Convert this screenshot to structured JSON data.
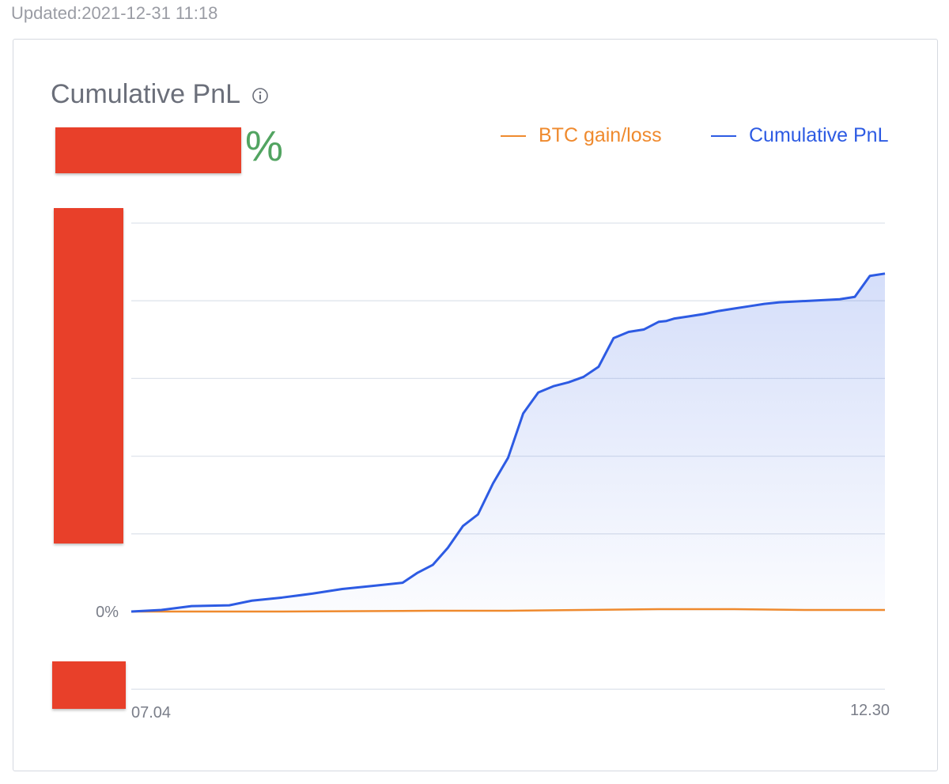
{
  "updated": "Updated:2021-12-31 11:18",
  "card": {
    "title": "Cumulative PnL",
    "value_suffix": "%"
  },
  "legend": {
    "btc": "BTC gain/loss",
    "pnl": "Cumulative PnL"
  },
  "colors": {
    "pnl": "#2d5be3",
    "btc": "#ef8a2e",
    "value_positive": "#52a461",
    "redaction": "#e8402a",
    "grid": "#dfe4ec"
  },
  "chart_data": {
    "type": "area",
    "x_start_label": "07.04",
    "x_end_label": "12.30",
    "y_zero_label": "0%",
    "grid": true,
    "legend_position": "top-right",
    "gridline_values": [
      -1,
      0,
      1,
      2,
      3,
      4,
      5
    ],
    "ylim": [
      -1,
      5
    ],
    "series": [
      {
        "name": "Cumulative PnL",
        "x": [
          0,
          0.04,
          0.08,
          0.13,
          0.16,
          0.2,
          0.24,
          0.28,
          0.32,
          0.36,
          0.38,
          0.4,
          0.42,
          0.44,
          0.46,
          0.48,
          0.5,
          0.52,
          0.54,
          0.56,
          0.58,
          0.6,
          0.62,
          0.64,
          0.66,
          0.68,
          0.7,
          0.71,
          0.72,
          0.74,
          0.76,
          0.78,
          0.8,
          0.82,
          0.84,
          0.86,
          0.88,
          0.9,
          0.92,
          0.94,
          0.96,
          0.98,
          1.0
        ],
        "values": [
          0.0,
          0.02,
          0.07,
          0.08,
          0.14,
          0.18,
          0.23,
          0.29,
          0.33,
          0.37,
          0.5,
          0.6,
          0.82,
          1.1,
          1.25,
          1.65,
          1.98,
          2.55,
          2.82,
          2.9,
          2.95,
          3.02,
          3.15,
          3.52,
          3.6,
          3.63,
          3.73,
          3.74,
          3.77,
          3.8,
          3.83,
          3.87,
          3.9,
          3.93,
          3.96,
          3.98,
          3.99,
          4.0,
          4.01,
          4.02,
          4.05,
          4.32,
          4.35
        ]
      },
      {
        "name": "BTC gain/loss",
        "x": [
          0,
          0.2,
          0.4,
          0.5,
          0.6,
          0.7,
          0.8,
          0.9,
          1.0
        ],
        "values": [
          0.0,
          0.0,
          0.01,
          0.01,
          0.02,
          0.03,
          0.03,
          0.02,
          0.02
        ]
      }
    ]
  }
}
